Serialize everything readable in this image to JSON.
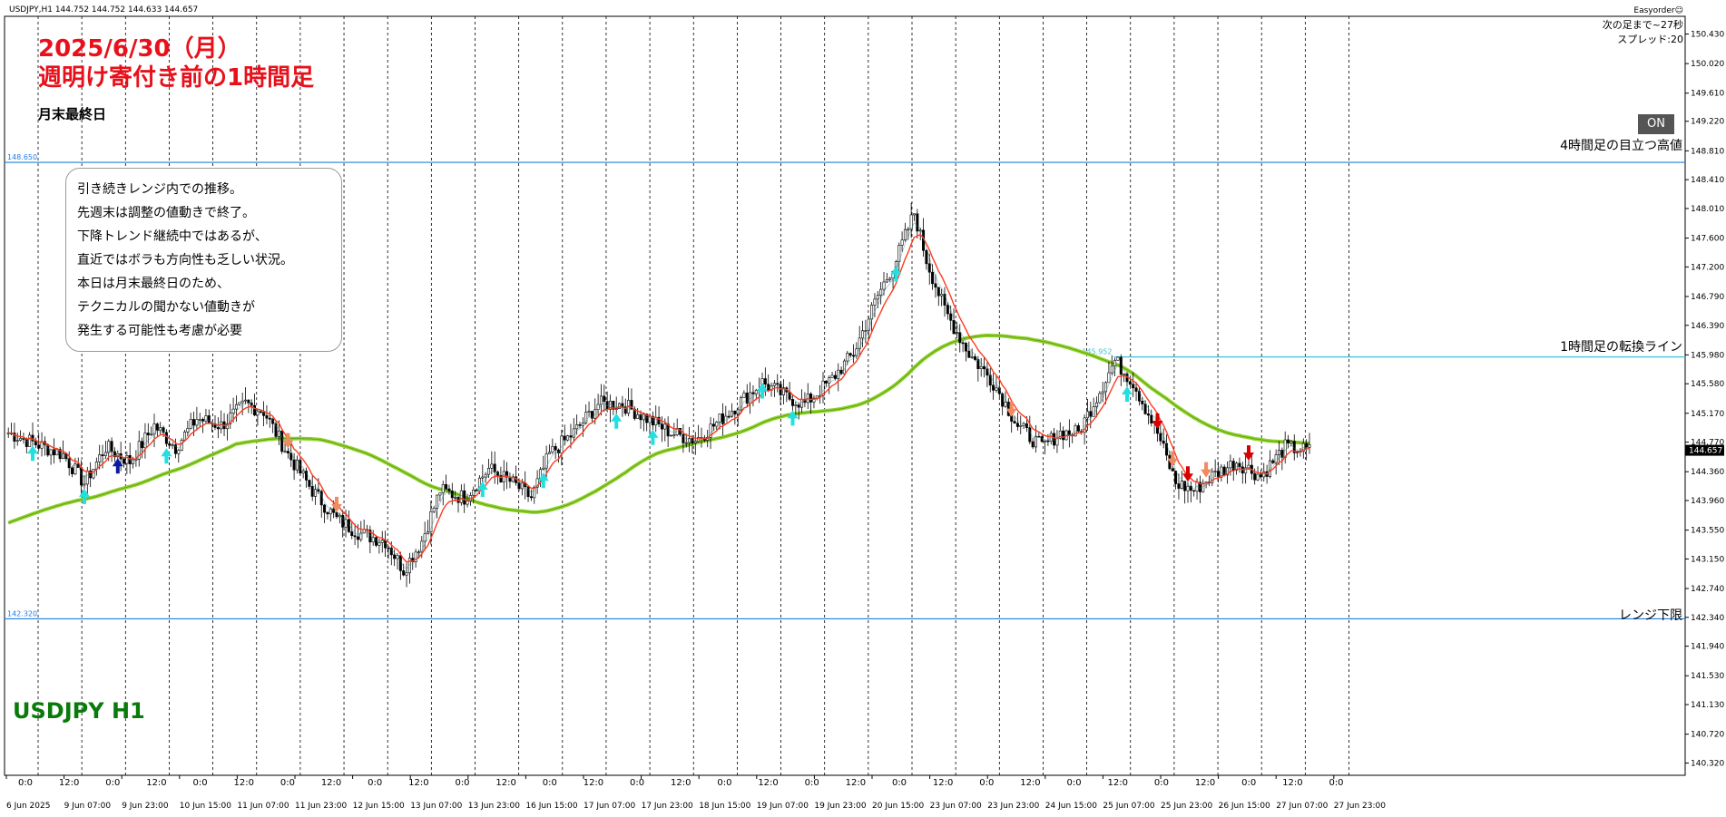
{
  "window": {
    "symbol_info": "USDJPY,H1  144.752 144.752 144.633 144.657",
    "easyorder": "Easyorder☺",
    "next_bar": "次の足まで~27秒",
    "spread": "スプレッド:20",
    "on_button": "ON"
  },
  "annotations": {
    "headline_1": "2025/6/30（月）",
    "headline_2": "週明け寄付き前の1時間足",
    "subnote": "月末最終日",
    "comment_lines": [
      "引き続きレンジ内での推移。",
      "先週末は調整の値動きで終了。",
      "下降トレンド継続中ではあるが、",
      "直近ではボラも方向性も乏しい状況。",
      "本日は月末最終日のため、",
      "テクニカルの聞かない値動きが",
      "発生する可能性も考慮が必要"
    ],
    "watermark": "USDJPY H1"
  },
  "colors": {
    "candle": "#000000",
    "ema_fast": "#ff3b1f",
    "ma_slow": "#8fd12a",
    "hline": "#1f7fe0",
    "arrow_up": "#22e0e0",
    "arrow_up_strong": "#0a1aa0",
    "arrow_down": "#f08a60",
    "arrow_down_strong": "#d80000",
    "headline": "#e8101a",
    "watermark": "#0a7a0a"
  },
  "chart_data": {
    "type": "candlestick",
    "symbol": "USDJPY",
    "timeframe": "H1",
    "ylim": [
      140.2,
      150.6
    ],
    "y_ticks": [
      "150.430",
      "150.020",
      "149.610",
      "149.220",
      "148.810",
      "148.410",
      "148.010",
      "147.600",
      "147.200",
      "146.790",
      "146.390",
      "145.980",
      "145.580",
      "145.170",
      "144.770",
      "144.360",
      "143.960",
      "143.550",
      "143.150",
      "142.740",
      "142.340",
      "141.940",
      "141.530",
      "141.130",
      "140.720",
      "140.320"
    ],
    "current_price": "144.657",
    "horizontal_lines": [
      {
        "price": 148.65,
        "price_label": "148.650",
        "text": "4時間足の目立つ高値"
      },
      {
        "price": 145.952,
        "price_label": "145.952",
        "text": "1時間足の転換ライン"
      },
      {
        "price": 142.32,
        "price_label": "142.320",
        "text": "レンジ下限"
      }
    ],
    "x_ticks_top": [
      "0:0",
      "12:0",
      "0:0",
      "12:0",
      "0:0",
      "12:0",
      "0:0",
      "12:0",
      "0:0",
      "12:0",
      "0:0",
      "12:0",
      "0:0",
      "12:0",
      "0:0",
      "12:0",
      "0:0",
      "12:0",
      "0:0",
      "12:0",
      "0:0",
      "12:0",
      "0:0",
      "12:0",
      "0:0",
      "12:0",
      "0:0",
      "12:0",
      "0:0",
      "12:0",
      "0:0"
    ],
    "x_ticks_bottom": [
      "6 Jun 2025",
      "9 Jun 07:00",
      "9 Jun 23:00",
      "10 Jun 15:00",
      "11 Jun 07:00",
      "11 Jun 23:00",
      "12 Jun 15:00",
      "13 Jun 07:00",
      "13 Jun 23:00",
      "16 Jun 15:00",
      "17 Jun 07:00",
      "17 Jun 23:00",
      "18 Jun 15:00",
      "19 Jun 07:00",
      "19 Jun 23:00",
      "20 Jun 15:00",
      "23 Jun 07:00",
      "23 Jun 23:00",
      "24 Jun 15:00",
      "25 Jun 07:00",
      "25 Jun 23:00",
      "26 Jun 15:00",
      "27 Jun 07:00",
      "27 Jun 23:00"
    ],
    "price_path": [
      [
        0,
        144.9
      ],
      [
        18,
        144.6
      ],
      [
        25,
        144.2
      ],
      [
        32,
        144.7
      ],
      [
        40,
        144.5
      ],
      [
        48,
        145.0
      ],
      [
        55,
        144.7
      ],
      [
        62,
        145.1
      ],
      [
        70,
        145.0
      ],
      [
        78,
        145.3
      ],
      [
        84,
        145.2
      ],
      [
        92,
        144.6
      ],
      [
        100,
        144.1
      ],
      [
        108,
        143.7
      ],
      [
        116,
        143.5
      ],
      [
        124,
        143.4
      ],
      [
        130,
        143.0
      ],
      [
        136,
        143.4
      ],
      [
        142,
        144.1
      ],
      [
        150,
        144.0
      ],
      [
        158,
        144.4
      ],
      [
        166,
        144.2
      ],
      [
        172,
        144.0
      ],
      [
        178,
        144.6
      ],
      [
        186,
        144.9
      ],
      [
        194,
        145.3
      ],
      [
        202,
        145.3
      ],
      [
        210,
        145.1
      ],
      [
        218,
        144.9
      ],
      [
        226,
        144.8
      ],
      [
        232,
        145.0
      ],
      [
        240,
        145.3
      ],
      [
        248,
        145.6
      ],
      [
        256,
        145.4
      ],
      [
        262,
        145.3
      ],
      [
        270,
        145.6
      ],
      [
        278,
        146.0
      ],
      [
        286,
        146.8
      ],
      [
        292,
        147.3
      ],
      [
        298,
        147.95
      ],
      [
        302,
        147.3
      ],
      [
        308,
        146.6
      ],
      [
        316,
        146.0
      ],
      [
        324,
        145.6
      ],
      [
        332,
        145.0
      ],
      [
        340,
        144.7
      ],
      [
        346,
        144.9
      ],
      [
        352,
        144.9
      ],
      [
        358,
        145.4
      ],
      [
        364,
        145.9
      ],
      [
        370,
        145.6
      ],
      [
        378,
        144.9
      ],
      [
        384,
        144.2
      ],
      [
        390,
        144.1
      ],
      [
        396,
        144.3
      ],
      [
        404,
        144.5
      ],
      [
        412,
        144.3
      ],
      [
        420,
        144.7
      ],
      [
        428,
        144.65
      ]
    ]
  }
}
